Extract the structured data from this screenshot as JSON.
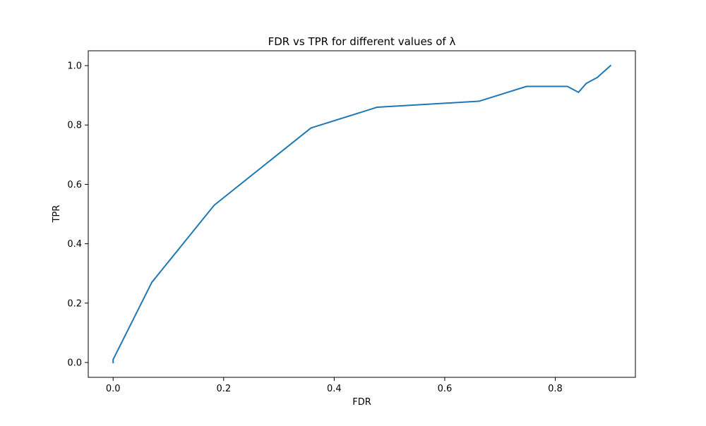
{
  "chart_data": {
    "type": "line",
    "title": "FDR vs TPR for different values of λ",
    "xlabel": "FDR",
    "ylabel": "TPR",
    "xlim": [
      -0.045,
      0.945
    ],
    "ylim": [
      -0.05,
      1.05
    ],
    "xticks": [
      0.0,
      0.2,
      0.4,
      0.6,
      0.8
    ],
    "xtick_labels": [
      "0.0",
      "0.2",
      "0.4",
      "0.6",
      "0.8"
    ],
    "yticks": [
      0.0,
      0.2,
      0.4,
      0.6,
      0.8,
      1.0
    ],
    "ytick_labels": [
      "0.0",
      "0.2",
      "0.4",
      "0.6",
      "0.8",
      "1.0"
    ],
    "grid": false,
    "legend": "none",
    "series": [
      {
        "color": "#1f77b4",
        "x": [
          0.0,
          0.0,
          0.07,
          0.183,
          0.358,
          0.478,
          0.662,
          0.748,
          0.822,
          0.842,
          0.856,
          0.876,
          0.9
        ],
        "y": [
          0.0,
          0.01,
          0.27,
          0.53,
          0.79,
          0.86,
          0.88,
          0.93,
          0.93,
          0.91,
          0.94,
          0.96,
          1.0
        ]
      }
    ]
  }
}
